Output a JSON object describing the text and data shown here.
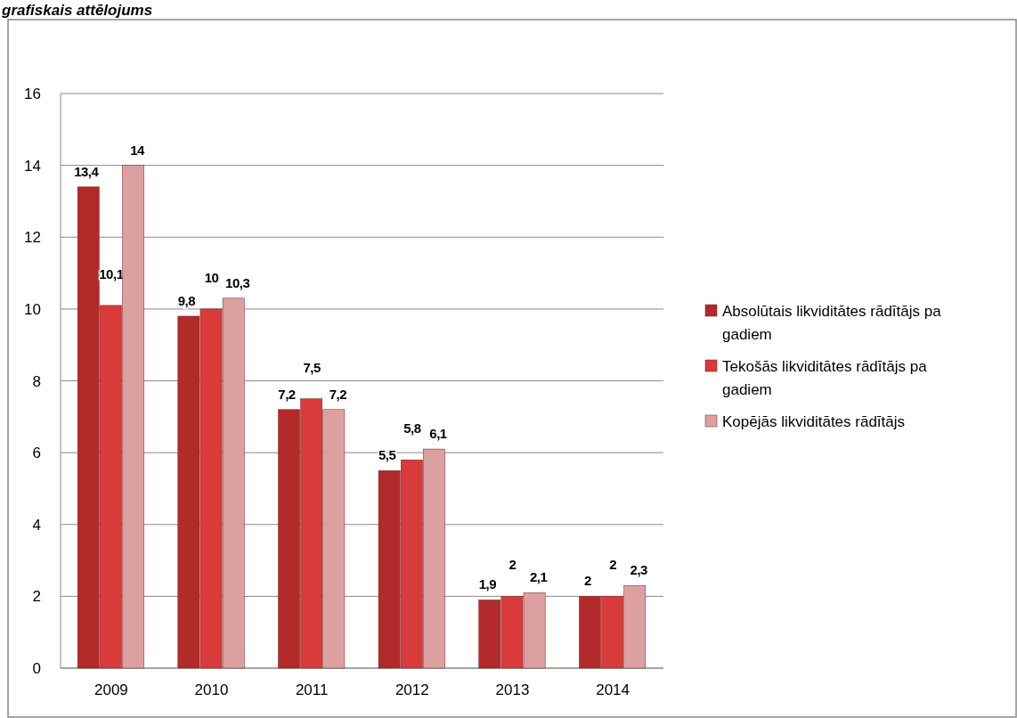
{
  "chart_data": {
    "type": "bar",
    "title": "grafiskais attēlojums",
    "categories": [
      "2009",
      "2010",
      "2011",
      "2012",
      "2013",
      "2014"
    ],
    "series": [
      {
        "name": "Absolūtais likviditātes rādītājs pa gadiem",
        "color": "#b22a2a",
        "values": [
          13.4,
          9.8,
          7.2,
          5.5,
          1.9,
          2
        ],
        "value_labels": [
          "13,4",
          "9,8",
          "7,2",
          "5,5",
          "1,9",
          "2"
        ]
      },
      {
        "name": "Tekošās likviditātes rādītājs pa gadiem",
        "color": "#d93a3a",
        "values": [
          10.1,
          10,
          7.5,
          5.8,
          2,
          2
        ],
        "value_labels": [
          "10,1",
          "10",
          "7,5",
          "5,8",
          "2",
          "2"
        ]
      },
      {
        "name": "Kopējās likviditātes rādītājs",
        "color": "#dca0a0",
        "values": [
          14,
          10.3,
          7.2,
          6.1,
          2.1,
          2.3
        ],
        "value_labels": [
          "14",
          "10,3",
          "7,2",
          "6,1",
          "2,1",
          "2,3"
        ]
      }
    ],
    "ylim": [
      0,
      16
    ],
    "yticks": [
      0,
      2,
      4,
      6,
      8,
      10,
      12,
      14,
      16
    ],
    "grid": "y",
    "legend": "right"
  }
}
